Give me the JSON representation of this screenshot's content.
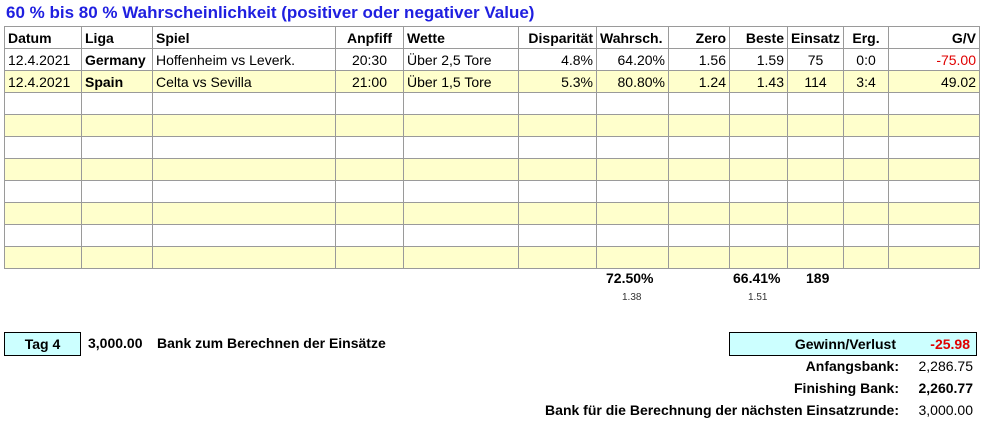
{
  "title": "60 % bis 80 % Wahrscheinlichkeit (positiver oder negativer Value)",
  "headers": [
    "Datum",
    "Liga",
    "Spiel",
    "Anpfiff",
    "Wette",
    "Disparität",
    "Wahrsch.",
    "Zero",
    "Beste",
    "Einsatz",
    "Erg.",
    "G/V"
  ],
  "rows": [
    {
      "datum": "12.4.2021",
      "liga": "Germany",
      "spiel": "Hoffenheim vs Leverk.",
      "anpfiff": "20:30",
      "wette": "Über 2,5 Tore",
      "disparitaet": "4.8%",
      "wahrsch": "64.20%",
      "zero": "1.56",
      "beste": "1.59",
      "einsatz": "75",
      "erg": "0:0",
      "gv": "-75.00"
    },
    {
      "datum": "12.4.2021",
      "liga": "Spain",
      "spiel": "Celta vs Sevilla",
      "anpfiff": "21:00",
      "wette": "Über 1,5 Tore",
      "disparitaet": "5.3%",
      "wahrsch": "80.80%",
      "zero": "1.24",
      "beste": "1.43",
      "einsatz": "114",
      "erg": "3:4",
      "gv": "49.02"
    }
  ],
  "summary": {
    "avg_wahrsch": "72.50%",
    "avg_odds_small": "1.38",
    "avg_beste_pct": "66.41%",
    "avg_beste_small": "1.51",
    "total_einsatz": "189"
  },
  "tag_label": "Tag 4",
  "bank_amount": "3,000.00",
  "bank_text": "Bank zum Berechnen der Einsätze",
  "gewinn_label": "Gewinn/Verlust",
  "gewinn_value": "-25.98",
  "anfangsbank_label": "Anfangsbank:",
  "anfangsbank_value": "2,286.75",
  "finishing_label": "Finishing Bank:",
  "finishing_value": "2,260.77",
  "next_bank_label": "Bank für die Berechnung der nächsten Einsatzrunde:",
  "next_bank_value": "3,000.00",
  "colors": {
    "title": "#1f1fe0",
    "negative": "#e00000",
    "yellow_row": "#ffffcc",
    "cyan_box": "#ccffff"
  }
}
